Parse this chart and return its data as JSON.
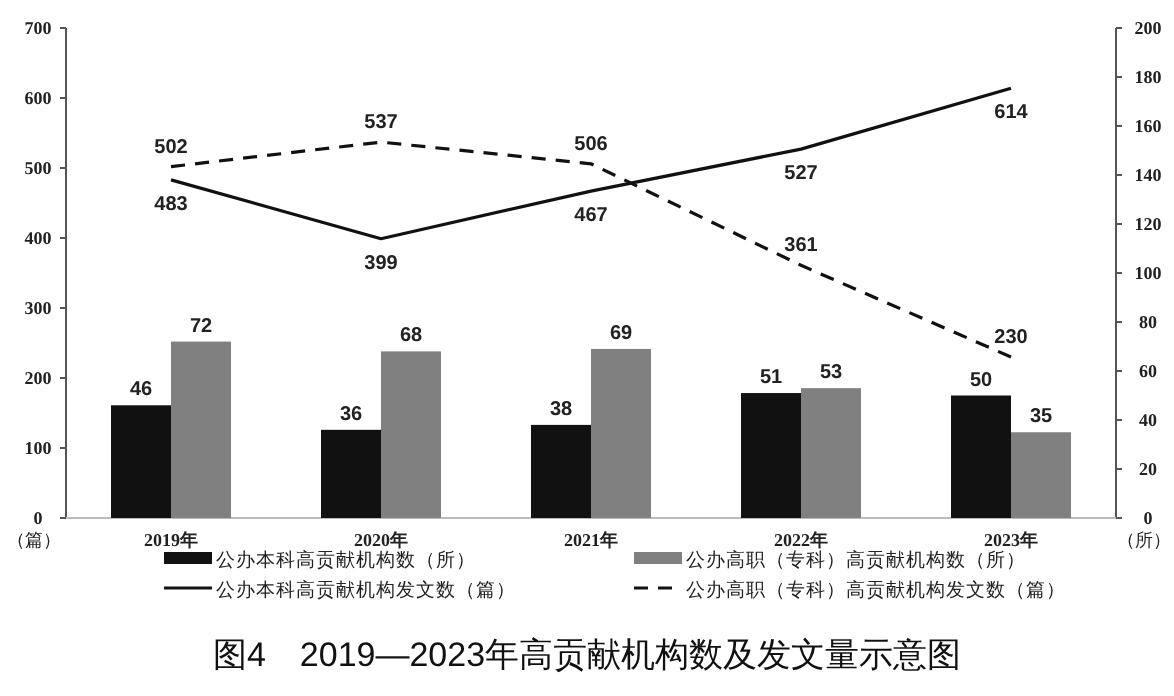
{
  "chart_data": {
    "type": "bar",
    "title": "图4　2019—2023年高贡献机构数及发文量示意图",
    "ylabel": "（篇）",
    "y2label": "（所）",
    "categories": [
      "2019年",
      "2020年",
      "2021年",
      "2022年",
      "2023年"
    ],
    "series": [
      {
        "name": "公办本科高贡献机构数（所）",
        "axis": "y2",
        "color": "#111111",
        "values": [
          46,
          36,
          38,
          51,
          50
        ]
      },
      {
        "name": "公办高职（专科）高贡献机构数（所）",
        "axis": "y2",
        "color": "#808080",
        "values": [
          72,
          68,
          69,
          53,
          35
        ]
      },
      {
        "name": "公办本科高贡献机构发文数（篇）",
        "type": "line",
        "color": "#111111",
        "line_style": "solid",
        "values": [
          483,
          399,
          467,
          527,
          614
        ]
      },
      {
        "name": "公办高职（专科）高贡献机构发文数（篇）",
        "type": "line",
        "color": "#111111",
        "line_style": "dashed",
        "values": [
          502,
          537,
          506,
          361,
          230
        ]
      }
    ],
    "ylim": [
      0,
      700
    ],
    "yticks": [
      0,
      100,
      200,
      300,
      400,
      500,
      600,
      700
    ],
    "y2lim": [
      0,
      200
    ],
    "y2ticks": [
      0,
      20,
      40,
      60,
      80,
      100,
      120,
      140,
      160,
      180,
      200
    ],
    "data_labels": true,
    "legend": "bottom",
    "grid": false
  }
}
